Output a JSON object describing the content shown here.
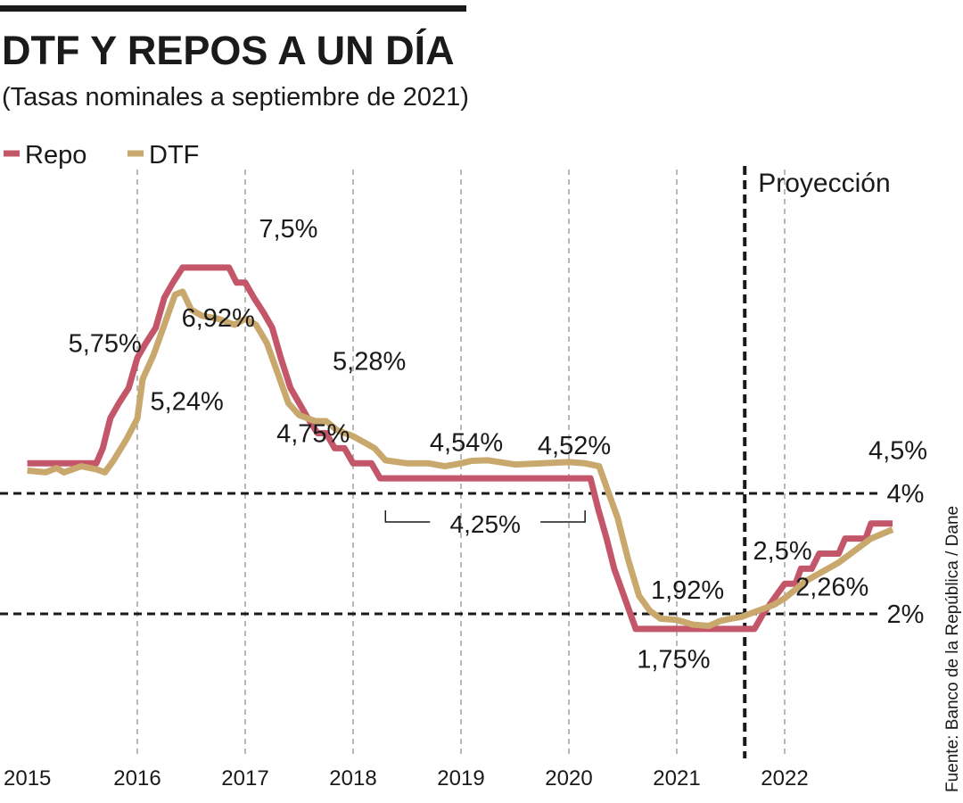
{
  "chart_data": {
    "type": "line",
    "title": "DTF Y REPOS A UN DÍA",
    "subtitle": "(Tasas nominales a septiembre de 2021)",
    "source": "Fuente: Banco de la República / Dane",
    "x_tick_labels": [
      "2015",
      "2016",
      "2017",
      "2018",
      "2019",
      "2020",
      "2021",
      "2022"
    ],
    "xlim": [
      2015.0,
      2023.15
    ],
    "ylim": [
      0.7,
      8.7
    ],
    "projection_start": 2021.63,
    "projection_label": "Proyección",
    "reference_lines": [
      {
        "value": 4,
        "label": "4%"
      },
      {
        "value": 2,
        "label": "2%"
      }
    ],
    "period_bracket": {
      "from": 2018.3,
      "to": 2020.15,
      "label": "4,25%"
    },
    "series": [
      {
        "name": "Repo",
        "color": "#c4566a",
        "points": [
          [
            2014.98,
            4.5
          ],
          [
            2015.62,
            4.5
          ],
          [
            2015.68,
            4.75
          ],
          [
            2015.75,
            5.25
          ],
          [
            2015.83,
            5.5
          ],
          [
            2015.92,
            5.75
          ],
          [
            2016.0,
            6.25
          ],
          [
            2016.08,
            6.5
          ],
          [
            2016.17,
            6.75
          ],
          [
            2016.25,
            7.25
          ],
          [
            2016.33,
            7.5
          ],
          [
            2016.42,
            7.75
          ],
          [
            2016.5,
            7.75
          ],
          [
            2016.85,
            7.75
          ],
          [
            2016.92,
            7.5
          ],
          [
            2017.0,
            7.5
          ],
          [
            2017.08,
            7.25
          ],
          [
            2017.17,
            7.0
          ],
          [
            2017.25,
            6.75
          ],
          [
            2017.33,
            6.25
          ],
          [
            2017.42,
            5.75
          ],
          [
            2017.5,
            5.5
          ],
          [
            2017.58,
            5.25
          ],
          [
            2017.67,
            5.0
          ],
          [
            2017.75,
            5.0
          ],
          [
            2017.83,
            4.75
          ],
          [
            2017.92,
            4.75
          ],
          [
            2018.0,
            4.5
          ],
          [
            2018.17,
            4.5
          ],
          [
            2018.25,
            4.25
          ],
          [
            2020.2,
            4.25
          ],
          [
            2020.27,
            3.75
          ],
          [
            2020.35,
            3.25
          ],
          [
            2020.42,
            2.75
          ],
          [
            2020.52,
            2.25
          ],
          [
            2020.62,
            1.75
          ],
          [
            2020.7,
            1.75
          ],
          [
            2021.72,
            1.75
          ],
          [
            2021.8,
            2.0
          ],
          [
            2021.9,
            2.25
          ],
          [
            2022.0,
            2.5
          ],
          [
            2022.1,
            2.5
          ],
          [
            2022.15,
            2.75
          ],
          [
            2022.25,
            2.75
          ],
          [
            2022.32,
            3.0
          ],
          [
            2022.5,
            3.0
          ],
          [
            2022.56,
            3.25
          ],
          [
            2022.75,
            3.25
          ],
          [
            2022.8,
            3.5
          ],
          [
            2023.0,
            3.5
          ]
        ]
      },
      {
        "name": "DTF",
        "color": "#c8a86c",
        "points": [
          [
            2014.98,
            4.38
          ],
          [
            2015.15,
            4.35
          ],
          [
            2015.25,
            4.42
          ],
          [
            2015.32,
            4.35
          ],
          [
            2015.48,
            4.45
          ],
          [
            2015.62,
            4.4
          ],
          [
            2015.7,
            4.35
          ],
          [
            2015.78,
            4.55
          ],
          [
            2015.9,
            4.9
          ],
          [
            2016.0,
            5.24
          ],
          [
            2016.05,
            5.9
          ],
          [
            2016.15,
            6.3
          ],
          [
            2016.25,
            6.8
          ],
          [
            2016.35,
            7.3
          ],
          [
            2016.42,
            7.35
          ],
          [
            2016.5,
            7.05
          ],
          [
            2016.6,
            6.95
          ],
          [
            2016.75,
            6.9
          ],
          [
            2016.9,
            6.8
          ],
          [
            2017.0,
            6.9
          ],
          [
            2017.1,
            6.8
          ],
          [
            2017.2,
            6.5
          ],
          [
            2017.3,
            6.0
          ],
          [
            2017.4,
            5.5
          ],
          [
            2017.5,
            5.3
          ],
          [
            2017.65,
            5.2
          ],
          [
            2017.75,
            5.2
          ],
          [
            2017.85,
            5.05
          ],
          [
            2018.0,
            4.95
          ],
          [
            2018.1,
            4.85
          ],
          [
            2018.2,
            4.75
          ],
          [
            2018.3,
            4.55
          ],
          [
            2018.5,
            4.5
          ],
          [
            2018.7,
            4.5
          ],
          [
            2018.85,
            4.45
          ],
          [
            2019.0,
            4.5
          ],
          [
            2019.1,
            4.54
          ],
          [
            2019.25,
            4.55
          ],
          [
            2019.5,
            4.48
          ],
          [
            2019.75,
            4.5
          ],
          [
            2020.0,
            4.52
          ],
          [
            2020.15,
            4.5
          ],
          [
            2020.28,
            4.45
          ],
          [
            2020.35,
            4.1
          ],
          [
            2020.45,
            3.6
          ],
          [
            2020.55,
            2.9
          ],
          [
            2020.65,
            2.3
          ],
          [
            2020.75,
            2.05
          ],
          [
            2020.85,
            1.92
          ],
          [
            2021.0,
            1.9
          ],
          [
            2021.15,
            1.82
          ],
          [
            2021.3,
            1.8
          ],
          [
            2021.4,
            1.88
          ],
          [
            2021.5,
            1.92
          ],
          [
            2021.6,
            1.95
          ],
          [
            2021.75,
            2.05
          ],
          [
            2021.9,
            2.15
          ],
          [
            2022.0,
            2.26
          ],
          [
            2022.2,
            2.55
          ],
          [
            2022.5,
            2.85
          ],
          [
            2022.8,
            3.25
          ],
          [
            2023.0,
            3.4
          ]
        ]
      }
    ],
    "annotations": [
      {
        "text": "7,5%",
        "x": 2017.4,
        "y": 8.4
      },
      {
        "text": "6,92%",
        "x": 2016.75,
        "y": 6.92
      },
      {
        "text": "5,75%",
        "x": 2015.7,
        "y": 6.5
      },
      {
        "text": "5,24%",
        "x": 2016.46,
        "y": 5.53
      },
      {
        "text": "5,28%",
        "x": 2018.15,
        "y": 6.2
      },
      {
        "text": "4,75%",
        "x": 2017.63,
        "y": 5.0
      },
      {
        "text": "4,54%",
        "x": 2019.05,
        "y": 4.85
      },
      {
        "text": "4,52%",
        "x": 2020.05,
        "y": 4.8
      },
      {
        "text": "1,92%",
        "x": 2021.1,
        "y": 2.4
      },
      {
        "text": "1,75%",
        "x": 2020.97,
        "y": 1.25
      },
      {
        "text": "2,5%",
        "x": 2021.98,
        "y": 3.05
      },
      {
        "text": "2,26%",
        "x": 2022.44,
        "y": 2.45
      },
      {
        "text": "4,5%",
        "x": 2023.05,
        "y": 4.72
      },
      {
        "text": "4%",
        "x": 2023.12,
        "y": 4.0
      },
      {
        "text": "2%",
        "x": 2023.12,
        "y": 2.0
      }
    ]
  },
  "legend": [
    {
      "name": "Repo",
      "color": "#c4566a"
    },
    {
      "name": "DTF",
      "color": "#c8a86c"
    }
  ]
}
